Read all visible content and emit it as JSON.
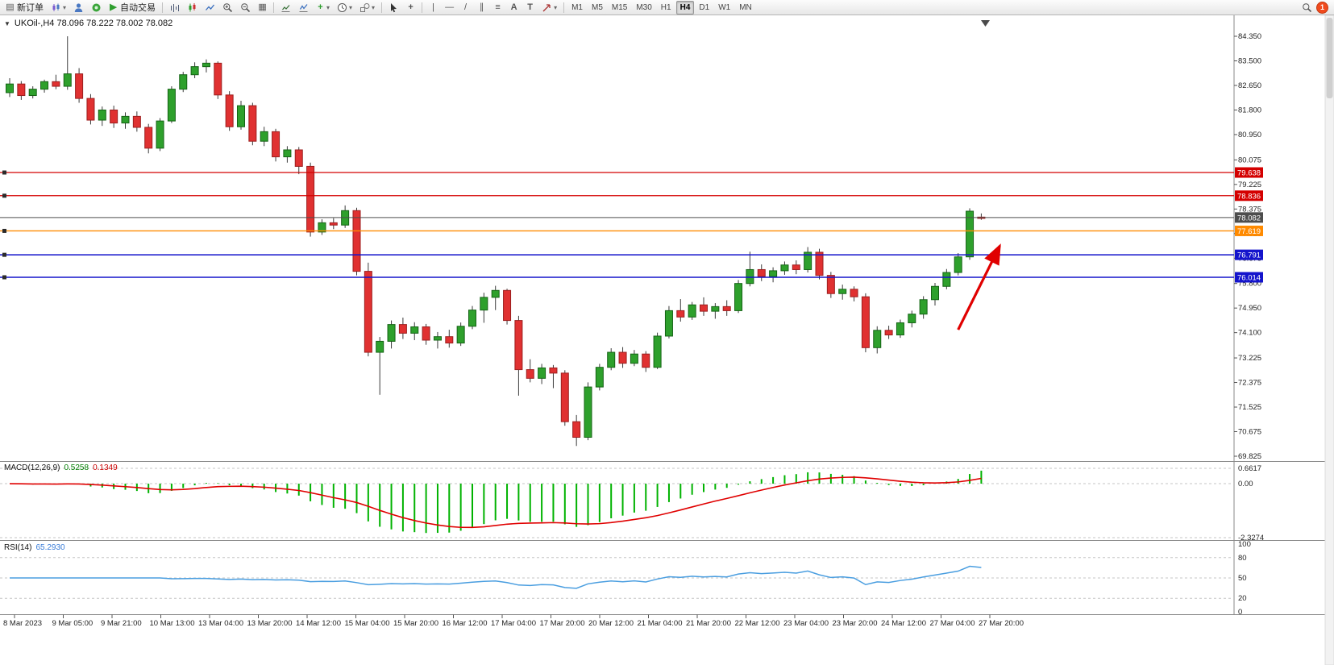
{
  "toolbar": {
    "new_order_label": "新订单",
    "autotrading_label": "自动交易",
    "timeframes": [
      "M1",
      "M5",
      "M15",
      "M30",
      "H1",
      "H4",
      "D1",
      "W1",
      "MN"
    ],
    "active_timeframe": "H4",
    "notification_count": "1"
  },
  "icons": {
    "triangle_down_glyph": "▼",
    "dropdown_glyph": "▾",
    "play_glyph": "▶",
    "tile_glyph": "▦",
    "doc_glyph": "▤",
    "vertical_line_glyph": "|",
    "horizontal_line_glyph": "—",
    "trendline_glyph": "/",
    "channel_glyph": "∥",
    "fibonacci_glyph": "≡",
    "text_glyph": "A",
    "text_label_glyph": "T",
    "crosshair_glyph": "+",
    "plus_glyph": "+"
  },
  "chart": {
    "title": "UKOil-,H4  78.096 78.222 78.002 78.082",
    "price_axis": [
      "84.350",
      "83.500",
      "82.650",
      "81.800",
      "80.950",
      "80.075",
      "79.225",
      "78.375",
      "77.525",
      "76.675",
      "75.800",
      "74.950",
      "74.100",
      "73.225",
      "72.375",
      "71.525",
      "70.675",
      "69.825"
    ],
    "levels": [
      {
        "price": 79.638,
        "label": "79.638",
        "color": "#d40000",
        "width": 1.2,
        "marker": true,
        "name": "resistance-line-1"
      },
      {
        "price": 78.836,
        "label": "78.836",
        "color": "#d40000",
        "width": 1.2,
        "marker": true,
        "name": "resistance-line-2"
      },
      {
        "price": 78.082,
        "label": "78.082",
        "color": "#4d4d4d",
        "width": 1.0,
        "marker": false,
        "name": "current-price-line"
      },
      {
        "price": 77.619,
        "label": "77.619",
        "color": "#ff8a00",
        "width": 1.4,
        "marker": true,
        "name": "pivot-line"
      },
      {
        "price": 76.791,
        "label": "76.791",
        "color": "#1414cc",
        "width": 1.6,
        "marker": true,
        "name": "support-line-1"
      },
      {
        "price": 76.014,
        "label": "76.014",
        "color": "#1414cc",
        "width": 1.6,
        "marker": true,
        "name": "support-line-2"
      }
    ]
  },
  "style": {
    "candle_up": "#2ea02c",
    "candle_up_border": "#156315",
    "candle_down": "#e03131",
    "candle_down_border": "#9c1f1f",
    "wick": "#3a3a3a",
    "arrow": "#e00000",
    "grid_dash": "#c6c6c6"
  },
  "macd_panel": {
    "title": "MACD(12,26,9)",
    "value_main": "0.5258",
    "value_signal": "0.1349",
    "axis": [
      "0.6617",
      "0.00",
      "-2.3274"
    ],
    "scale_max": 0.6617,
    "scale_min": -2.3274,
    "histogram_color": "#00b200",
    "signal_color": "#e00000"
  },
  "rsi_panel": {
    "title": "RSI(14)",
    "value": "65.2930",
    "axis": [
      "100",
      "80",
      "50",
      "20",
      "0"
    ],
    "levels": [
      80,
      50,
      20
    ],
    "line_color": "#4a9ee0"
  },
  "chart_data": {
    "type": "candlestick",
    "symbol": "UKOil-",
    "timeframe": "H4",
    "ohlc_current": {
      "open": 78.096,
      "high": 78.222,
      "low": 78.002,
      "close": 78.082
    },
    "ylim": [
      69.825,
      84.35
    ],
    "time_labels": [
      "8 Mar 2023",
      "9 Mar 05:00",
      "9 Mar 21:00",
      "10 Mar 13:00",
      "13 Mar 04:00",
      "13 Mar 20:00",
      "14 Mar 12:00",
      "15 Mar 04:00",
      "15 Mar 20:00",
      "16 Mar 12:00",
      "17 Mar 04:00",
      "17 Mar 20:00",
      "20 Mar 12:00",
      "21 Mar 04:00",
      "21 Mar 20:00",
      "22 Mar 12:00",
      "23 Mar 04:00",
      "23 Mar 20:00",
      "24 Mar 12:00",
      "27 Mar 04:00",
      "27 Mar 20:00"
    ],
    "candles": [
      [
        82.4,
        82.9,
        82.25,
        82.7
      ],
      [
        82.7,
        82.8,
        82.15,
        82.3
      ],
      [
        82.3,
        82.62,
        82.2,
        82.52
      ],
      [
        82.52,
        82.85,
        82.4,
        82.78
      ],
      [
        82.78,
        83.02,
        82.52,
        82.62
      ],
      [
        82.62,
        84.35,
        82.5,
        83.05
      ],
      [
        83.05,
        83.25,
        82.05,
        82.2
      ],
      [
        82.2,
        82.35,
        81.3,
        81.45
      ],
      [
        81.45,
        81.92,
        81.25,
        81.8
      ],
      [
        81.8,
        81.95,
        81.18,
        81.35
      ],
      [
        81.35,
        81.72,
        81.15,
        81.58
      ],
      [
        81.58,
        81.75,
        81.05,
        81.2
      ],
      [
        81.2,
        81.32,
        80.3,
        80.48
      ],
      [
        80.48,
        81.52,
        80.38,
        81.42
      ],
      [
        81.42,
        82.62,
        81.35,
        82.52
      ],
      [
        82.52,
        83.12,
        82.42,
        83.02
      ],
      [
        83.02,
        83.45,
        82.9,
        83.3
      ],
      [
        83.3,
        83.55,
        83.1,
        83.42
      ],
      [
        83.42,
        83.48,
        82.18,
        82.32
      ],
      [
        82.32,
        82.45,
        81.08,
        81.22
      ],
      [
        81.22,
        82.12,
        81.12,
        81.95
      ],
      [
        81.95,
        82.05,
        80.58,
        80.72
      ],
      [
        80.72,
        81.22,
        80.55,
        81.05
      ],
      [
        81.05,
        81.15,
        80.02,
        80.18
      ],
      [
        80.18,
        80.55,
        79.98,
        80.42
      ],
      [
        80.42,
        80.52,
        79.58,
        79.85
      ],
      [
        79.85,
        79.98,
        77.42,
        77.58
      ],
      [
        77.58,
        78.02,
        77.48,
        77.9
      ],
      [
        77.9,
        78.06,
        77.68,
        77.82
      ],
      [
        77.82,
        78.5,
        77.72,
        78.32
      ],
      [
        78.32,
        78.42,
        76.08,
        76.22
      ],
      [
        76.22,
        76.52,
        73.28,
        73.42
      ],
      [
        73.42,
        73.95,
        71.95,
        73.8
      ],
      [
        73.8,
        74.52,
        73.55,
        74.38
      ],
      [
        74.38,
        74.62,
        73.88,
        74.08
      ],
      [
        74.08,
        74.46,
        73.84,
        74.3
      ],
      [
        74.3,
        74.4,
        73.68,
        73.84
      ],
      [
        73.84,
        74.12,
        73.55,
        73.96
      ],
      [
        73.96,
        74.2,
        73.58,
        73.74
      ],
      [
        73.74,
        74.45,
        73.64,
        74.32
      ],
      [
        74.32,
        75.02,
        74.22,
        74.88
      ],
      [
        74.88,
        75.48,
        74.44,
        75.32
      ],
      [
        75.32,
        75.72,
        74.88,
        75.56
      ],
      [
        75.56,
        75.62,
        74.38,
        74.52
      ],
      [
        74.52,
        74.68,
        71.92,
        72.82
      ],
      [
        72.82,
        73.18,
        72.38,
        72.52
      ],
      [
        72.52,
        73.02,
        72.32,
        72.88
      ],
      [
        72.88,
        72.98,
        72.18,
        72.7
      ],
      [
        72.7,
        72.8,
        70.88,
        71.02
      ],
      [
        71.02,
        71.25,
        70.18,
        70.48
      ],
      [
        70.48,
        72.38,
        70.38,
        72.22
      ],
      [
        72.22,
        73.02,
        72.1,
        72.9
      ],
      [
        72.9,
        73.56,
        72.8,
        73.42
      ],
      [
        73.42,
        73.6,
        72.88,
        73.04
      ],
      [
        73.04,
        73.5,
        72.94,
        73.36
      ],
      [
        73.36,
        73.46,
        72.74,
        72.9
      ],
      [
        72.9,
        74.1,
        72.84,
        73.98
      ],
      [
        73.98,
        75.02,
        73.9,
        74.86
      ],
      [
        74.86,
        75.26,
        74.48,
        74.64
      ],
      [
        74.64,
        75.16,
        74.54,
        75.06
      ],
      [
        75.06,
        75.32,
        74.68,
        74.84
      ],
      [
        74.84,
        75.12,
        74.58,
        75.0
      ],
      [
        75.0,
        75.22,
        74.68,
        74.86
      ],
      [
        74.86,
        75.92,
        74.78,
        75.8
      ],
      [
        75.8,
        76.9,
        75.7,
        76.28
      ],
      [
        76.28,
        76.46,
        75.88,
        76.04
      ],
      [
        76.04,
        76.36,
        75.84,
        76.24
      ],
      [
        76.24,
        76.56,
        76.1,
        76.44
      ],
      [
        76.44,
        76.6,
        76.12,
        76.28
      ],
      [
        76.28,
        77.06,
        76.18,
        76.88
      ],
      [
        76.88,
        77.0,
        75.94,
        76.08
      ],
      [
        76.08,
        76.2,
        75.3,
        75.45
      ],
      [
        75.45,
        75.76,
        75.24,
        75.6
      ],
      [
        75.6,
        75.7,
        75.18,
        75.34
      ],
      [
        75.34,
        75.46,
        73.42,
        73.58
      ],
      [
        73.58,
        74.32,
        73.38,
        74.18
      ],
      [
        74.18,
        74.34,
        73.88,
        74.02
      ],
      [
        74.02,
        74.55,
        73.92,
        74.44
      ],
      [
        74.44,
        74.86,
        74.28,
        74.74
      ],
      [
        74.74,
        75.36,
        74.58,
        75.24
      ],
      [
        75.24,
        75.82,
        75.04,
        75.7
      ],
      [
        75.7,
        76.3,
        75.6,
        76.18
      ],
      [
        76.18,
        76.85,
        76.08,
        76.72
      ],
      [
        76.72,
        78.4,
        76.62,
        78.3
      ],
      [
        78.096,
        78.222,
        78.002,
        78.082
      ]
    ],
    "arrow": {
      "from": {
        "bar": 82.0,
        "price": 74.2
      },
      "to": {
        "bar": 85.6,
        "price": 77.1
      }
    }
  }
}
